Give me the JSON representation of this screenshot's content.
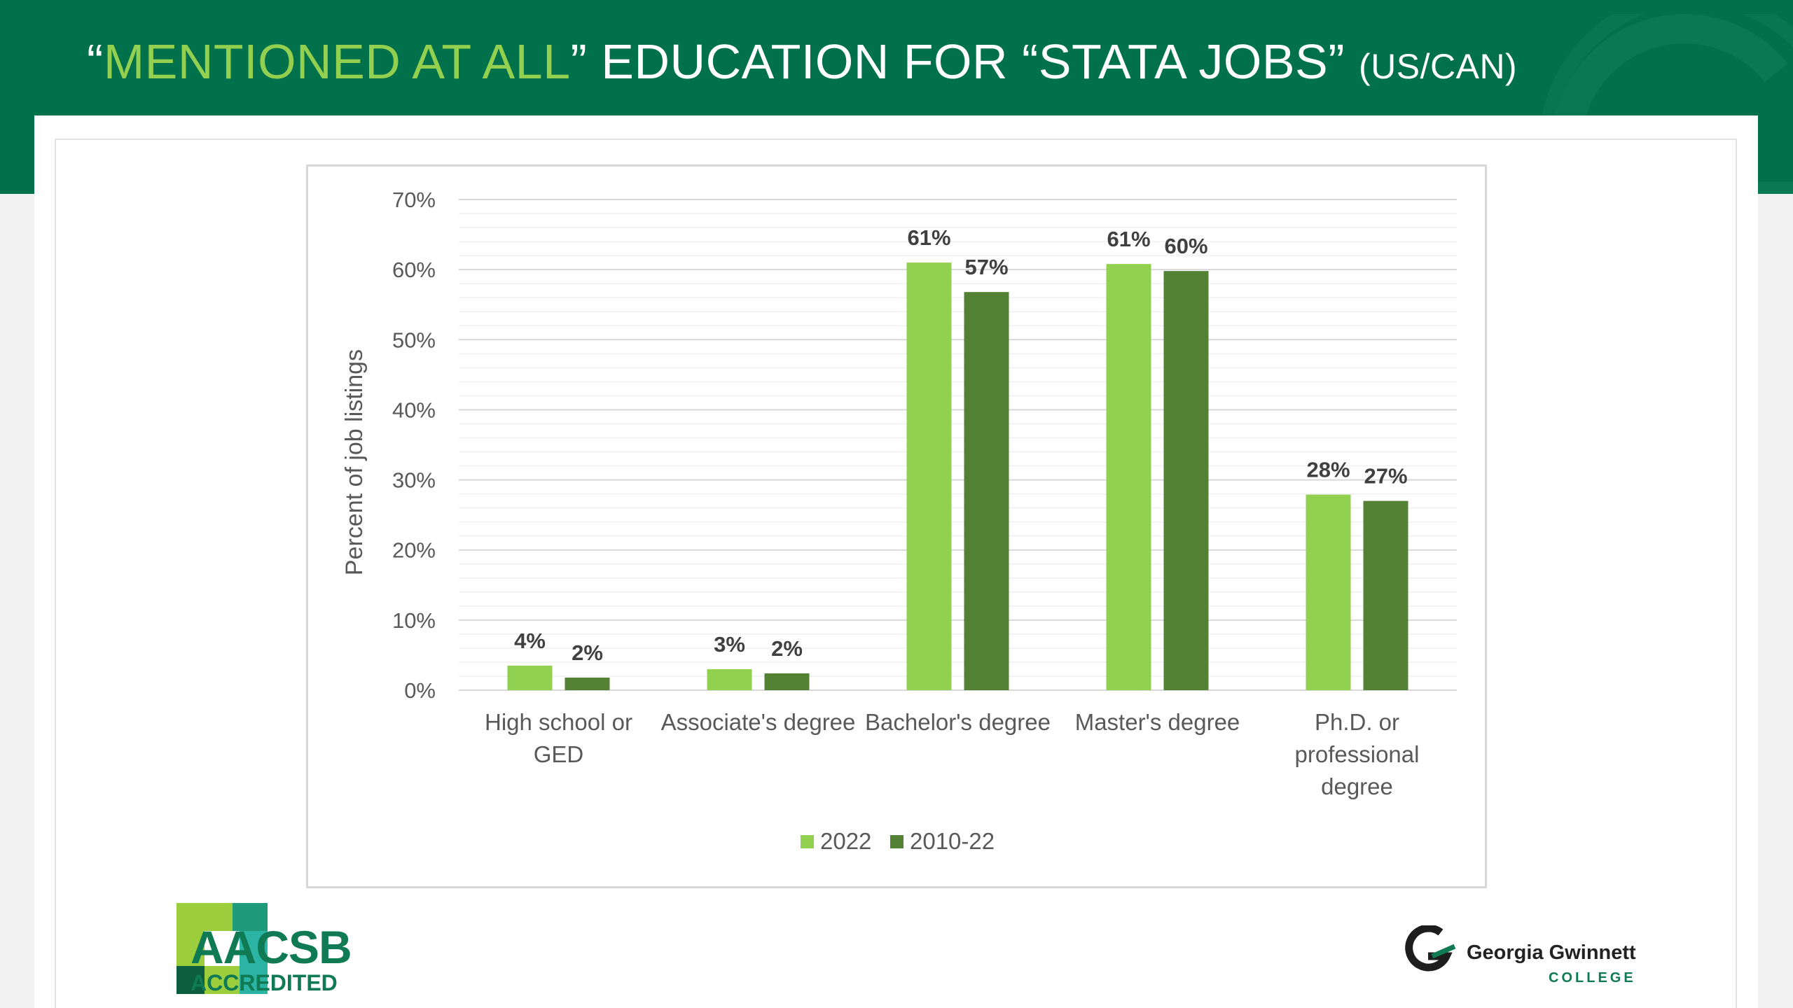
{
  "slide": {
    "title_open_quote": "“",
    "title_highlight": "MENTIONED AT ALL",
    "title_main": "” EDUCATION FOR “STATA JOBS”",
    "title_region": "(US/CAN)"
  },
  "colors": {
    "header_green": "#00714a",
    "accent_light_green": "#94d050",
    "series_2022": "#92d050",
    "series_2010_22": "#548235"
  },
  "chart_data": {
    "type": "bar",
    "title": "",
    "xlabel": "",
    "ylabel": "Percent of job listings",
    "ylim": [
      0,
      70
    ],
    "yticks": [
      0,
      10,
      20,
      30,
      40,
      50,
      60,
      70
    ],
    "ytick_labels": [
      "0%",
      "10%",
      "20%",
      "30%",
      "40%",
      "50%",
      "60%",
      "70%"
    ],
    "grid": true,
    "legend_position": "bottom",
    "categories": [
      [
        "High school or",
        "GED"
      ],
      [
        "Associate's degree"
      ],
      [
        "Bachelor's degree"
      ],
      [
        "Master's degree"
      ],
      [
        "Ph.D. or",
        "professional",
        "degree"
      ]
    ],
    "series": [
      {
        "name": "2022",
        "color": "#92d050",
        "values": [
          3.5,
          3.0,
          61.0,
          60.8,
          27.9
        ],
        "labels": [
          "4%",
          "3%",
          "61%",
          "61%",
          "28%"
        ]
      },
      {
        "name": "2010-22",
        "color": "#548235",
        "values": [
          1.8,
          2.4,
          56.8,
          59.8,
          27.0
        ],
        "labels": [
          "2%",
          "2%",
          "57%",
          "60%",
          "27%"
        ]
      }
    ]
  },
  "logos": {
    "aacsb_main": "AACSB",
    "aacsb_sub": "ACCREDITED",
    "ggc_name": "Georgia Gwinnett",
    "ggc_sub": "COLLEGE"
  }
}
